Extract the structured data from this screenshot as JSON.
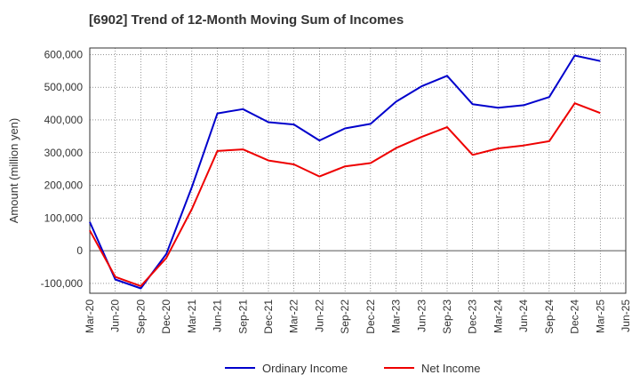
{
  "chart_data": {
    "type": "line",
    "title": "[6902]  Trend of 12-Month Moving Sum of Incomes",
    "xlabel": "",
    "ylabel": "Amount (million yen)",
    "ylim": [
      -130000,
      620000
    ],
    "yticks": [
      -100000,
      0,
      100000,
      200000,
      300000,
      400000,
      500000,
      600000
    ],
    "ytick_labels": [
      "-100,000",
      "0",
      "100,000",
      "200,000",
      "300,000",
      "400,000",
      "500,000",
      "600,000"
    ],
    "categories": [
      "Mar-20",
      "Jun-20",
      "Sep-20",
      "Dec-20",
      "Mar-21",
      "Jun-21",
      "Sep-21",
      "Dec-21",
      "Mar-22",
      "Jun-22",
      "Sep-22",
      "Dec-22",
      "Mar-23",
      "Jun-23",
      "Sep-23",
      "Dec-23",
      "Mar-24",
      "Jun-24",
      "Sep-24",
      "Dec-24",
      "Mar-25",
      "Jun-25"
    ],
    "grid": true,
    "legend_position": "bottom",
    "series": [
      {
        "name": "Ordinary Income",
        "color": "#0000cc",
        "values": [
          88000,
          -88000,
          -115000,
          -10000,
          195000,
          420000,
          433000,
          393000,
          386000,
          337000,
          374000,
          388000,
          456000,
          503000,
          535000,
          448000,
          437000,
          445000,
          470000,
          597000,
          580000,
          null
        ]
      },
      {
        "name": "Net Income",
        "color": "#ee0000",
        "values": [
          62000,
          -80000,
          -108000,
          -22000,
          128000,
          305000,
          310000,
          276000,
          264000,
          227000,
          258000,
          268000,
          314000,
          348000,
          378000,
          293000,
          313000,
          322000,
          335000,
          451000,
          421000,
          null
        ]
      }
    ]
  }
}
